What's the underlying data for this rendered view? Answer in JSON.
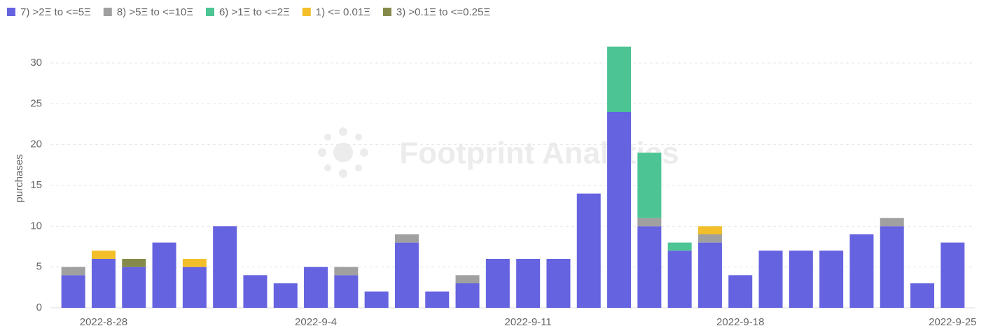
{
  "chart_data": {
    "type": "stacked-bar",
    "y_label": "purchases",
    "watermark": "Footprint Analytics",
    "categories": [
      null,
      "2022-8-28",
      null,
      null,
      null,
      null,
      null,
      null,
      "2022-9-4",
      null,
      null,
      null,
      null,
      null,
      null,
      "2022-9-11",
      null,
      null,
      null,
      null,
      null,
      null,
      "2022-9-18",
      null,
      null,
      null,
      null,
      null,
      null,
      "2022-9-25"
    ],
    "series": [
      {
        "name": "7) >2Ξ to <=5Ξ",
        "color": "#6563e0",
        "values": [
          4,
          6,
          5,
          8,
          5,
          10,
          4,
          3,
          5,
          4,
          2,
          8,
          2,
          3,
          6,
          6,
          6,
          14,
          24,
          10,
          7,
          8,
          4,
          7,
          7,
          7,
          9,
          10,
          3,
          8
        ]
      },
      {
        "name": "8) >5Ξ to <=10Ξ",
        "color": "#a0a0a0",
        "values": [
          1,
          0,
          0,
          0,
          0,
          0,
          0,
          0,
          0,
          1,
          0,
          1,
          0,
          1,
          0,
          0,
          0,
          0,
          0,
          1,
          0,
          1,
          0,
          0,
          0,
          0,
          0,
          1,
          0,
          0
        ]
      },
      {
        "name": "6) >1Ξ to <=2Ξ",
        "color": "#4cc494",
        "values": [
          0,
          0,
          0,
          0,
          0,
          0,
          0,
          0,
          0,
          0,
          0,
          0,
          0,
          0,
          0,
          0,
          0,
          0,
          8,
          8,
          1,
          0,
          0,
          0,
          0,
          0,
          0,
          0,
          0,
          0
        ]
      },
      {
        "name": "1) <= 0.01Ξ",
        "color": "#f2bf2a",
        "values": [
          0,
          1,
          0,
          0,
          1,
          0,
          0,
          0,
          0,
          0,
          0,
          0,
          0,
          0,
          0,
          0,
          0,
          0,
          0,
          0,
          0,
          1,
          0,
          0,
          0,
          0,
          0,
          0,
          0,
          0
        ]
      },
      {
        "name": "3) >0.1Ξ to <=0.25Ξ",
        "color": "#858a4a",
        "values": [
          0,
          0,
          1,
          0,
          0,
          0,
          0,
          0,
          0,
          0,
          0,
          0,
          0,
          0,
          0,
          0,
          0,
          0,
          0,
          0,
          0,
          0,
          0,
          0,
          0,
          0,
          0,
          0,
          0,
          0
        ]
      }
    ],
    "ylim": [
      0,
      33
    ],
    "yticks": [
      0,
      5,
      10,
      15,
      20,
      25,
      30
    ],
    "grid": true,
    "legend": "top-left"
  }
}
